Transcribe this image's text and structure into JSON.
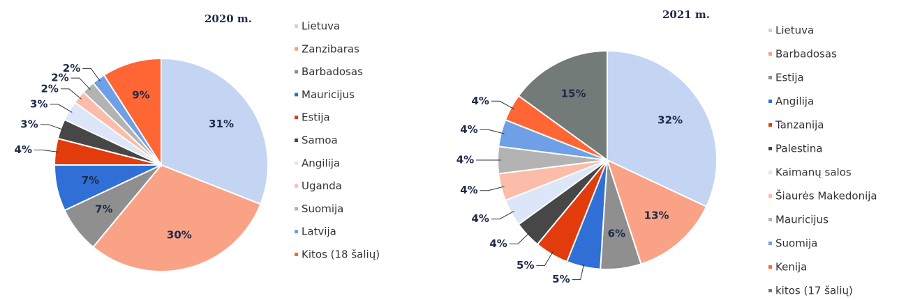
{
  "chart_data": [
    {
      "type": "pie",
      "title": "2020 m.",
      "categories": [
        "Lietuva",
        "Zanzibaras",
        "Barbadosas",
        "Mauricijus",
        "Estija",
        "Samoa",
        "Angilija",
        "Uganda",
        "Suomija",
        "Latvija",
        "Kitos (18 šalių)"
      ],
      "values": [
        31,
        30,
        7,
        7,
        4,
        3,
        3,
        2,
        2,
        2,
        9
      ],
      "value_labels": [
        "31%",
        "30%",
        "7%",
        "7%",
        "4%",
        "3%",
        "3%",
        "2%",
        "2%",
        "2%",
        "9%"
      ],
      "colors": [
        "#c3d5f2",
        "#f9a286",
        "#8f8f8f",
        "#2f6fd6",
        "#e23c0c",
        "#474747",
        "#dce6f8",
        "#fbbca9",
        "#b3b3b3",
        "#6f9fe6",
        "#ff6633"
      ]
    },
    {
      "type": "pie",
      "title": "2021 m.",
      "categories": [
        "Lietuva",
        "Barbadosas",
        "Estija",
        "Angilija",
        "Tanzanija",
        "Palestina",
        "Kaimanų salos",
        "Šiaurės Makedonija",
        "Mauricijus",
        "Suomija",
        "Kenija",
        "kitos (17 šalių)"
      ],
      "values": [
        32,
        13,
        6,
        5,
        5,
        4,
        4,
        4,
        4,
        4,
        4,
        15
      ],
      "value_labels": [
        "32%",
        "13%",
        "6%",
        "5%",
        "5%",
        "4%",
        "4%",
        "4%",
        "4%",
        "4%",
        "4%",
        "15%"
      ],
      "colors": [
        "#c3d5f2",
        "#f9a286",
        "#8f8f8f",
        "#2f6fd6",
        "#e23c0c",
        "#474747",
        "#dce6f8",
        "#fbbca9",
        "#b3b3b3",
        "#6f9fe6",
        "#ff6633",
        "#737b78"
      ]
    }
  ]
}
